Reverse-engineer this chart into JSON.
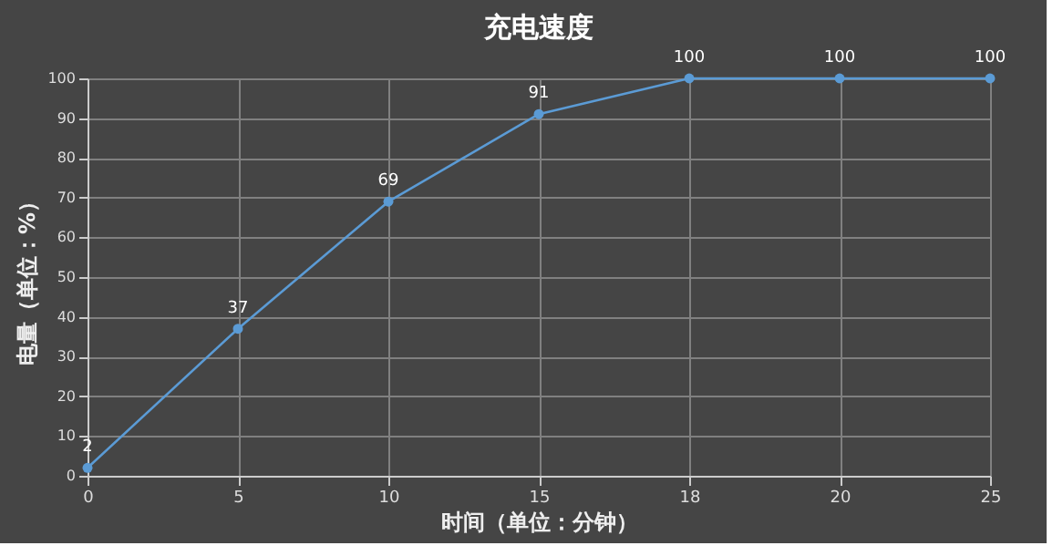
{
  "chart_data": {
    "type": "line",
    "title": "充电速度",
    "xlabel": "时间（单位：分钟）",
    "ylabel": "电量（单位：%）",
    "categories": [
      "0",
      "5",
      "10",
      "15",
      "18",
      "20",
      "25"
    ],
    "series": [
      {
        "color": "#5b9bd5",
        "values": [
          2,
          37,
          69,
          91,
          100,
          100,
          100
        ]
      }
    ],
    "ylim": [
      0,
      100
    ],
    "yticks": [
      0,
      10,
      20,
      30,
      40,
      50,
      60,
      70,
      80,
      90,
      100
    ],
    "grid": true,
    "marker": "circle",
    "line_style": "solid",
    "data_labels": true
  }
}
